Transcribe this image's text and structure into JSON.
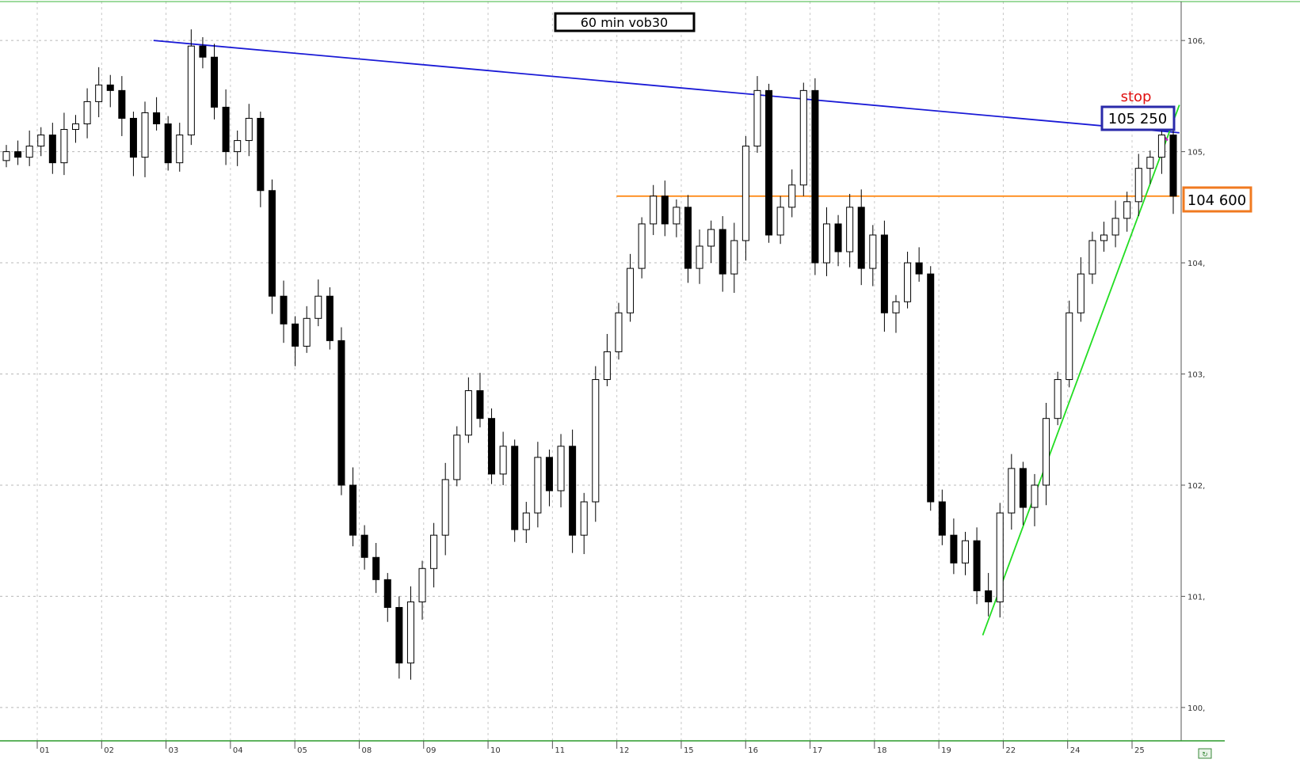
{
  "chart_data": {
    "type": "candlestick",
    "title": "60 min vob30",
    "xlabel": "",
    "ylabel": "",
    "grid": true,
    "ylim": [
      99.7,
      106.35
    ],
    "y_ticks": [
      100,
      101,
      102,
      103,
      104,
      105,
      106
    ],
    "y_tick_labels": [
      "100,",
      "101,",
      "102,",
      "103,",
      "104,",
      "105,",
      "106,"
    ],
    "x_tick_labels": [
      "01",
      "02",
      "03",
      "04",
      "05",
      "08",
      "09",
      "10",
      "11",
      "12",
      "15",
      "16",
      "17",
      "18",
      "19",
      "22",
      "24",
      "25"
    ],
    "close_path": [
      105.0,
      104.95,
      105.05,
      105.15,
      104.9,
      105.2,
      105.25,
      105.45,
      105.6,
      105.55,
      105.3,
      104.95,
      105.35,
      105.25,
      104.9,
      105.15,
      105.95,
      105.85,
      105.4,
      105.0,
      105.1,
      105.3,
      104.65,
      103.7,
      103.45,
      103.25,
      103.5,
      103.7,
      103.3,
      102.0,
      101.55,
      101.35,
      101.15,
      100.9,
      100.4,
      100.95,
      101.25,
      101.55,
      102.05,
      102.45,
      102.85,
      102.6,
      102.1,
      102.35,
      101.6,
      101.75,
      102.25,
      101.95,
      102.35,
      101.55,
      101.85,
      102.95,
      103.2,
      103.55,
      103.95,
      104.35,
      104.6,
      104.35,
      104.5,
      103.95,
      104.15,
      104.3,
      103.9,
      104.2,
      105.05,
      105.55,
      104.25,
      104.5,
      104.7,
      105.55,
      104.0,
      104.35,
      104.1,
      104.5,
      103.95,
      104.25,
      103.55,
      103.65,
      104.0,
      103.9,
      101.85,
      101.55,
      101.3,
      101.5,
      101.05,
      100.95,
      101.75,
      102.15,
      101.8,
      102.0,
      102.6,
      102.95,
      103.55,
      103.9,
      104.2,
      104.25,
      104.4,
      104.55,
      104.85,
      104.95,
      105.15,
      104.6
    ],
    "series": [
      {
        "name": "",
        "type": "line",
        "color": "#1a1ad6",
        "x_frac": [
          0.13,
          0.9985
        ],
        "y": [
          106.0,
          105.17
        ]
      },
      {
        "name": "",
        "type": "line",
        "color": "#ff8c1a",
        "x_frac": [
          0.522,
          0.9985
        ],
        "y": [
          104.6,
          104.6
        ]
      },
      {
        "name": "",
        "type": "line",
        "color": "#22dd22",
        "x_frac": [
          0.832,
          0.9985
        ],
        "y": [
          100.65,
          105.42
        ]
      },
      {
        "name": "",
        "type": "line",
        "color": "#c020c0",
        "x_frac": [
          0.9845,
          0.9885
        ],
        "y": [
          105.15,
          105.1
        ]
      }
    ],
    "annotations": [
      {
        "text": "stop",
        "color": "#e01010"
      },
      {
        "text": "105 250",
        "color": "#2a2aaa"
      },
      {
        "text": "104 600",
        "color": "#f07a20"
      }
    ]
  }
}
